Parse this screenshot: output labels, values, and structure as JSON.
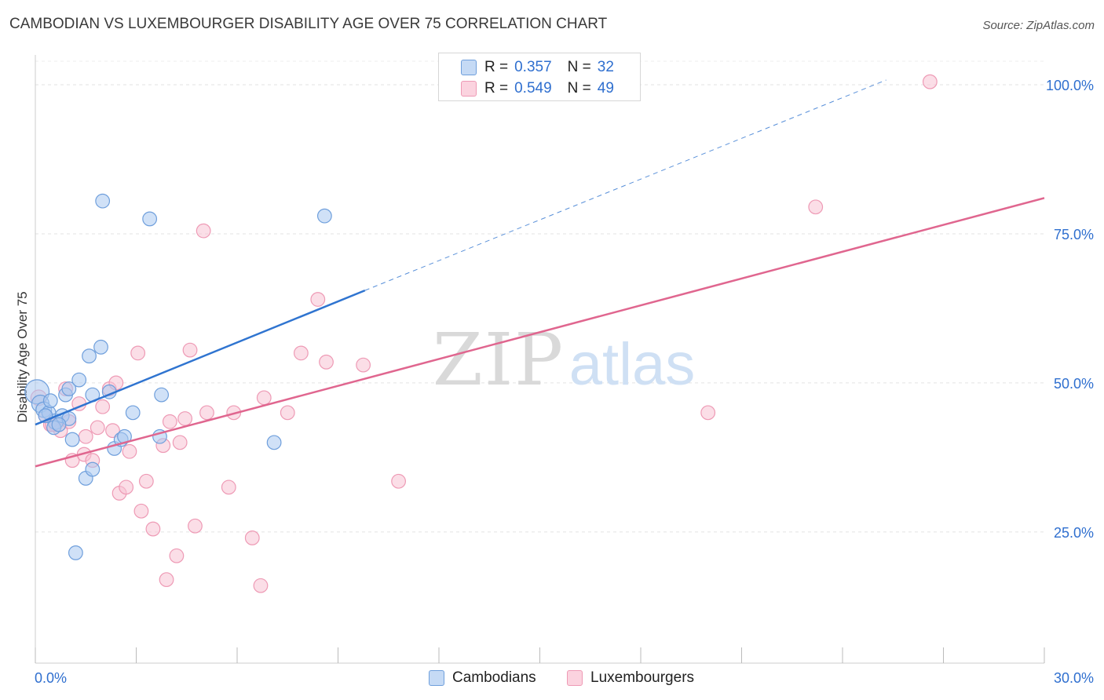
{
  "title": "CAMBODIAN VS LUXEMBOURGER DISABILITY AGE OVER 75 CORRELATION CHART",
  "source": "Source: ZipAtlas.com",
  "watermark": {
    "zip": "ZIP",
    "atlas": "atlas"
  },
  "legend": {
    "rows": [
      {
        "r_label": "R =",
        "r_value": "0.357",
        "n_label": "N =",
        "n_value": "32"
      },
      {
        "r_label": "R =",
        "r_value": "0.549",
        "n_label": "N =",
        "n_value": "49"
      }
    ]
  },
  "bottom_legend": {
    "cambodians": "Cambodians",
    "luxembourgers": "Luxembourgers"
  },
  "colors": {
    "blue_fill": "#a9c8f0",
    "blue_stroke": "#6f9fdc",
    "blue_line": "#2f74d0",
    "pink_fill": "#f8c3d3",
    "pink_stroke": "#ee9ab5",
    "pink_line": "#e0668f",
    "tick_text": "#2f6fcf"
  },
  "chart_data": {
    "type": "scatter",
    "title": "CAMBODIAN VS LUXEMBOURGER DISABILITY AGE OVER 75 CORRELATION CHART",
    "xlabel": "",
    "ylabel": "Disability Age Over 75",
    "xlim": [
      0,
      30
    ],
    "ylim": [
      3,
      105
    ],
    "x_tick_labels": [
      "0.0%",
      "30.0%"
    ],
    "y_ticks": [
      25,
      50,
      75,
      100
    ],
    "y_tick_labels": [
      "25.0%",
      "50.0%",
      "75.0%",
      "100.0%"
    ],
    "grid": true,
    "series": [
      {
        "name": "Cambodians",
        "R": 0.357,
        "N": 32,
        "points": [
          [
            0.05,
            48.5,
            14
          ],
          [
            0.15,
            46.5,
            10
          ],
          [
            0.25,
            45.5,
            9
          ],
          [
            0.4,
            45.0,
            8
          ],
          [
            0.6,
            43.5,
            9
          ],
          [
            0.8,
            44.5,
            8
          ],
          [
            0.9,
            48.0,
            8
          ],
          [
            1.0,
            44.0,
            8
          ],
          [
            1.0,
            49.0,
            8
          ],
          [
            1.1,
            40.5,
            8
          ],
          [
            1.3,
            50.5,
            8
          ],
          [
            1.5,
            34.0,
            8
          ],
          [
            1.6,
            54.5,
            8
          ],
          [
            1.7,
            48.0,
            8
          ],
          [
            1.7,
            35.5,
            8
          ],
          [
            1.95,
            56.0,
            8
          ],
          [
            2.0,
            80.5,
            8
          ],
          [
            2.2,
            48.5,
            8
          ],
          [
            2.35,
            39.0,
            8
          ],
          [
            2.55,
            40.5,
            8
          ],
          [
            2.65,
            41.0,
            8
          ],
          [
            2.9,
            45.0,
            8
          ],
          [
            3.4,
            77.5,
            8
          ],
          [
            3.7,
            41.0,
            8
          ],
          [
            3.75,
            48.0,
            8
          ],
          [
            7.1,
            40.0,
            8
          ],
          [
            8.6,
            78.0,
            8
          ],
          [
            1.2,
            21.5,
            8
          ],
          [
            0.55,
            42.5,
            8
          ],
          [
            0.3,
            44.5,
            8
          ],
          [
            0.7,
            43.0,
            8
          ],
          [
            0.45,
            47.0,
            8
          ]
        ],
        "trend": {
          "x": [
            0,
            9.8
          ],
          "y": [
            43.0,
            65.5
          ],
          "dashed_extension": {
            "x": [
              9.8,
              25.3
            ],
            "y": [
              65.5,
              100.8
            ]
          }
        }
      },
      {
        "name": "Luxembourgers",
        "R": 0.549,
        "N": 49,
        "points": [
          [
            0.1,
            47.5,
            9
          ],
          [
            0.3,
            44.5,
            8
          ],
          [
            0.45,
            43.0,
            8
          ],
          [
            0.6,
            43.0,
            8
          ],
          [
            0.75,
            42.0,
            8
          ],
          [
            0.9,
            49.0,
            8
          ],
          [
            1.1,
            37.0,
            8
          ],
          [
            1.3,
            46.5,
            8
          ],
          [
            1.45,
            38.0,
            8
          ],
          [
            1.5,
            41.0,
            8
          ],
          [
            1.7,
            37.0,
            8
          ],
          [
            1.85,
            42.5,
            8
          ],
          [
            2.0,
            46.0,
            8
          ],
          [
            2.2,
            49.0,
            8
          ],
          [
            2.3,
            42.0,
            8
          ],
          [
            2.4,
            50.0,
            8
          ],
          [
            2.5,
            31.5,
            8
          ],
          [
            2.7,
            32.5,
            8
          ],
          [
            2.8,
            38.5,
            8
          ],
          [
            3.05,
            55.0,
            8
          ],
          [
            3.15,
            28.5,
            8
          ],
          [
            3.3,
            33.5,
            8
          ],
          [
            3.5,
            25.5,
            8
          ],
          [
            3.8,
            39.5,
            8
          ],
          [
            3.9,
            17.0,
            8
          ],
          [
            4.0,
            43.5,
            8
          ],
          [
            4.2,
            21.0,
            8
          ],
          [
            4.3,
            40.0,
            8
          ],
          [
            4.45,
            44.0,
            8
          ],
          [
            4.6,
            55.5,
            8
          ],
          [
            4.75,
            26.0,
            8
          ],
          [
            5.0,
            75.5,
            8
          ],
          [
            5.1,
            45.0,
            8
          ],
          [
            5.75,
            32.5,
            8
          ],
          [
            5.9,
            45.0,
            8
          ],
          [
            6.45,
            24.0,
            8
          ],
          [
            6.7,
            16.0,
            8
          ],
          [
            6.8,
            47.5,
            8
          ],
          [
            7.5,
            45.0,
            8
          ],
          [
            7.9,
            55.0,
            8
          ],
          [
            8.4,
            64.0,
            8
          ],
          [
            8.65,
            53.5,
            8
          ],
          [
            9.75,
            53.0,
            8
          ],
          [
            10.8,
            33.5,
            8
          ],
          [
            20.0,
            45.0,
            8
          ],
          [
            23.2,
            79.5,
            8
          ],
          [
            26.6,
            100.5,
            8
          ],
          [
            0.5,
            43.0,
            8
          ],
          [
            1.0,
            43.5,
            8
          ]
        ],
        "trend": {
          "x": [
            0,
            30
          ],
          "y": [
            36.0,
            81.0
          ]
        }
      }
    ]
  }
}
